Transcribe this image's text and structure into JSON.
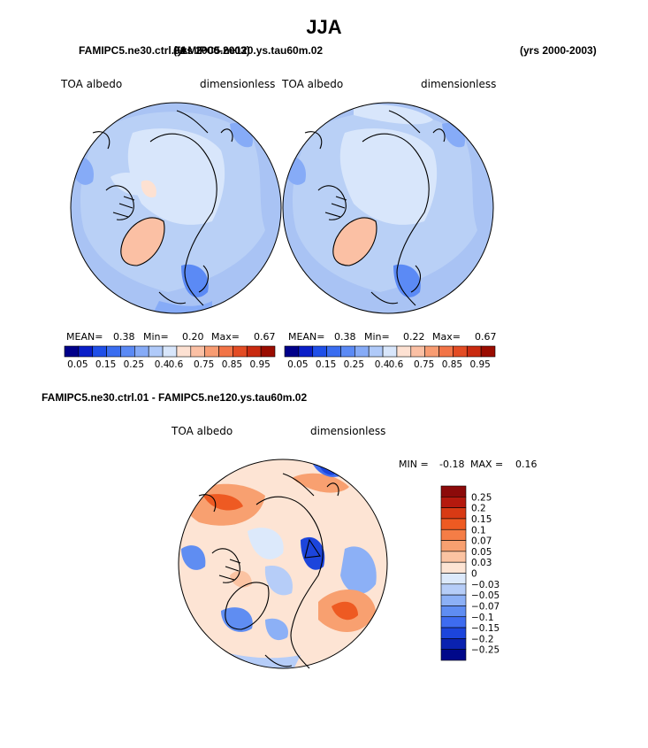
{
  "title": "JJA",
  "header": {
    "case_a": "FAMIPC5.ne30.ctrl.01",
    "years_a": "(yrs 2000-2003)",
    "case_b": "FAMIPC5.ne120.ys.tau60m.02",
    "years_b": "(yrs 2000-2003)"
  },
  "panels": [
    {
      "variable": "TOA albedo",
      "units": "dimensionless",
      "stats": {
        "mean_label": "MEAN=",
        "mean": "0.38",
        "min_label": "Min=",
        "min": "0.20",
        "max_label": "Max=",
        "max": "0.67"
      }
    },
    {
      "variable": "TOA albedo",
      "units": "dimensionless",
      "stats": {
        "mean_label": "MEAN=",
        "mean": "0.38",
        "min_label": "Min=",
        "min": "0.22",
        "max_label": "Max=",
        "max": "0.67"
      }
    }
  ],
  "colorbar_abs": {
    "labels": [
      "0.05",
      "0.15",
      "0.25",
      "0.4",
      "0.6",
      "0.75",
      "0.85",
      "0.95"
    ],
    "colors": [
      "#00008a",
      "#0a1fc8",
      "#1f4fe8",
      "#3a6df0",
      "#5b8af5",
      "#86abf7",
      "#b0caf9",
      "#d8e6fb",
      "#fde1d2",
      "#fbc0a4",
      "#f89c72",
      "#f27447",
      "#e34c24",
      "#c92a10",
      "#9a0c00"
    ]
  },
  "difference": {
    "header": "FAMIPC5.ne30.ctrl.01 - FAMIPC5.ne120.ys.tau60m.02",
    "variable": "TOA albedo",
    "units": "dimensionless",
    "min_label": "MIN =",
    "min": "-0.18",
    "max_label": "MAX =",
    "max": "0.16",
    "colorbar": {
      "labels": [
        "0.25",
        "0.2",
        "0.15",
        "0.1",
        "0.07",
        "0.05",
        "0.03",
        "0",
        "−0.03",
        "−0.05",
        "−0.07",
        "−0.1",
        "−0.15",
        "−0.2",
        "−0.25"
      ],
      "colors": [
        "#8c0a0a",
        "#b5190e",
        "#d83a14",
        "#ee5a22",
        "#f57d46",
        "#f8a070",
        "#fbc3a2",
        "#fde4d4",
        "#dce9fb",
        "#b6cdf8",
        "#8cb0f6",
        "#5f8df2",
        "#3e6cf0",
        "#1c45dc",
        "#0a22b0",
        "#00088a"
      ]
    }
  }
}
